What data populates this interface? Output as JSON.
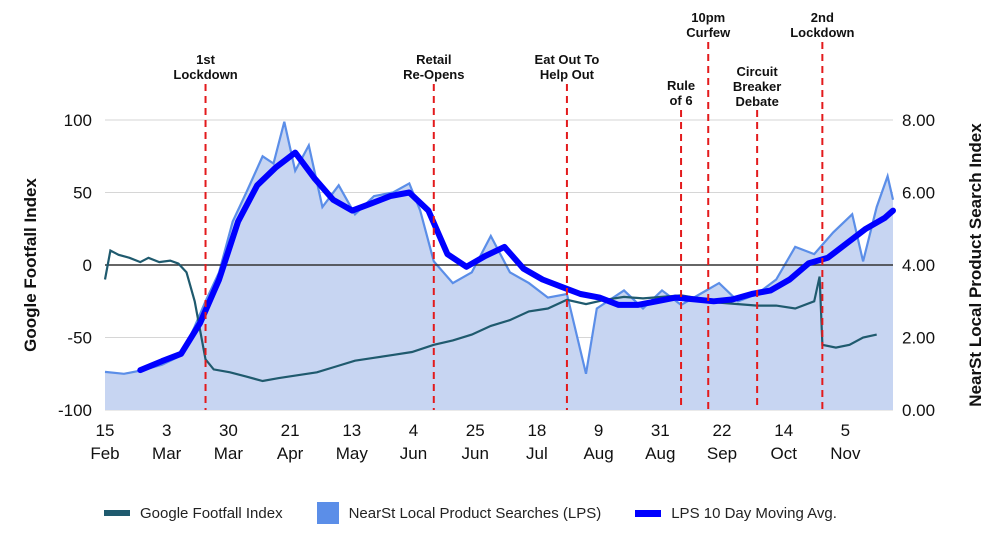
{
  "chart_data": {
    "type": "line",
    "y_left_label": "Google Footfall Index",
    "y_right_label": "NearSt Local Product Search Index",
    "y_left_ticks": [
      "100",
      "50",
      "0",
      "-50",
      "-100"
    ],
    "y_right_ticks": [
      "8.00",
      "6.00",
      "4.00",
      "2.00",
      "0.00"
    ],
    "ylim_left": [
      -100,
      100
    ],
    "ylim_right": [
      0,
      8
    ],
    "x_ticks": [
      {
        "day": "15",
        "month": "Feb"
      },
      {
        "day": "3",
        "month": "Mar"
      },
      {
        "day": "30",
        "month": "Mar"
      },
      {
        "day": "21",
        "month": "Apr"
      },
      {
        "day": "13",
        "month": "May"
      },
      {
        "day": "4",
        "month": "Jun"
      },
      {
        "day": "25",
        "month": "Jun"
      },
      {
        "day": "18",
        "month": "Jul"
      },
      {
        "day": "9",
        "month": "Aug"
      },
      {
        "day": "31",
        "month": "Aug"
      },
      {
        "day": "22",
        "month": "Sep"
      },
      {
        "day": "14",
        "month": "Oct"
      },
      {
        "day": "5",
        "month": "Nov"
      }
    ],
    "events": [
      {
        "lines": [
          "1st",
          "Lockdown"
        ],
        "date": "2020-03-23"
      },
      {
        "lines": [
          "Retail",
          "Re-Opens"
        ],
        "date": "2020-06-15"
      },
      {
        "lines": [
          "Eat Out To",
          "Help Out"
        ],
        "date": "2020-08-03"
      },
      {
        "lines": [
          "Rule",
          "of 6"
        ],
        "date": "2020-09-14"
      },
      {
        "lines": [
          "10pm",
          "Curfew"
        ],
        "date": "2020-09-24"
      },
      {
        "lines": [
          "Circuit",
          "Breaker",
          "Debate"
        ],
        "date": "2020-10-12"
      },
      {
        "lines": [
          "2nd",
          "Lockdown"
        ],
        "date": "2020-11-05"
      }
    ],
    "series": [
      {
        "name": "Google Footfall Index",
        "axis": "left",
        "color": "#1f5a6e",
        "points": [
          [
            "2020-02-15",
            -10
          ],
          [
            "2020-02-17",
            10
          ],
          [
            "2020-02-20",
            7
          ],
          [
            "2020-02-24",
            5
          ],
          [
            "2020-02-28",
            2
          ],
          [
            "2020-03-02",
            5
          ],
          [
            "2020-03-06",
            2
          ],
          [
            "2020-03-10",
            3
          ],
          [
            "2020-03-13",
            1
          ],
          [
            "2020-03-16",
            -5
          ],
          [
            "2020-03-19",
            -25
          ],
          [
            "2020-03-23",
            -65
          ],
          [
            "2020-03-26",
            -72
          ],
          [
            "2020-04-01",
            -74
          ],
          [
            "2020-04-07",
            -77
          ],
          [
            "2020-04-13",
            -80
          ],
          [
            "2020-04-19",
            -78
          ],
          [
            "2020-04-26",
            -76
          ],
          [
            "2020-05-03",
            -74
          ],
          [
            "2020-05-10",
            -70
          ],
          [
            "2020-05-17",
            -66
          ],
          [
            "2020-05-24",
            -64
          ],
          [
            "2020-05-31",
            -62
          ],
          [
            "2020-06-07",
            -60
          ],
          [
            "2020-06-15",
            -55
          ],
          [
            "2020-06-22",
            -52
          ],
          [
            "2020-06-29",
            -48
          ],
          [
            "2020-07-06",
            -42
          ],
          [
            "2020-07-13",
            -38
          ],
          [
            "2020-07-20",
            -32
          ],
          [
            "2020-07-27",
            -30
          ],
          [
            "2020-08-03",
            -24
          ],
          [
            "2020-08-10",
            -27
          ],
          [
            "2020-08-17",
            -24
          ],
          [
            "2020-08-24",
            -22
          ],
          [
            "2020-08-31",
            -23
          ],
          [
            "2020-09-07",
            -22
          ],
          [
            "2020-09-14",
            -21
          ],
          [
            "2020-09-21",
            -23
          ],
          [
            "2020-09-28",
            -26
          ],
          [
            "2020-10-05",
            -27
          ],
          [
            "2020-10-12",
            -28
          ],
          [
            "2020-10-19",
            -28
          ],
          [
            "2020-10-26",
            -30
          ],
          [
            "2020-11-02",
            -25
          ],
          [
            "2020-11-04",
            -8
          ],
          [
            "2020-11-05",
            -55
          ],
          [
            "2020-11-10",
            -57
          ],
          [
            "2020-11-15",
            -55
          ],
          [
            "2020-11-20",
            -50
          ],
          [
            "2020-11-25",
            -48
          ]
        ]
      },
      {
        "name": "NearSt Local Product Searches (LPS)",
        "axis": "right",
        "color": "#5b8ee8",
        "points": [
          [
            "2020-02-15",
            1.05
          ],
          [
            "2020-02-22",
            1.0
          ],
          [
            "2020-02-29",
            1.1
          ],
          [
            "2020-03-07",
            1.25
          ],
          [
            "2020-03-14",
            1.5
          ],
          [
            "2020-03-19",
            2.3
          ],
          [
            "2020-03-23",
            3.0
          ],
          [
            "2020-03-28",
            3.8
          ],
          [
            "2020-04-02",
            5.2
          ],
          [
            "2020-04-07",
            6.0
          ],
          [
            "2020-04-13",
            7.0
          ],
          [
            "2020-04-17",
            6.8
          ],
          [
            "2020-04-21",
            7.95
          ],
          [
            "2020-04-25",
            6.6
          ],
          [
            "2020-04-30",
            7.3
          ],
          [
            "2020-05-05",
            5.6
          ],
          [
            "2020-05-11",
            6.2
          ],
          [
            "2020-05-17",
            5.4
          ],
          [
            "2020-05-24",
            5.9
          ],
          [
            "2020-05-31",
            6.0
          ],
          [
            "2020-06-06",
            6.25
          ],
          [
            "2020-06-10",
            5.5
          ],
          [
            "2020-06-15",
            4.1
          ],
          [
            "2020-06-22",
            3.5
          ],
          [
            "2020-06-29",
            3.8
          ],
          [
            "2020-07-06",
            4.8
          ],
          [
            "2020-07-13",
            3.8
          ],
          [
            "2020-07-20",
            3.5
          ],
          [
            "2020-07-27",
            3.1
          ],
          [
            "2020-08-03",
            3.2
          ],
          [
            "2020-08-10",
            1.0
          ],
          [
            "2020-08-14",
            2.8
          ],
          [
            "2020-08-24",
            3.3
          ],
          [
            "2020-08-31",
            2.8
          ],
          [
            "2020-09-07",
            3.3
          ],
          [
            "2020-09-14",
            2.9
          ],
          [
            "2020-09-21",
            3.2
          ],
          [
            "2020-09-28",
            3.5
          ],
          [
            "2020-10-05",
            3.0
          ],
          [
            "2020-10-12",
            3.2
          ],
          [
            "2020-10-19",
            3.6
          ],
          [
            "2020-10-26",
            4.5
          ],
          [
            "2020-11-02",
            4.3
          ],
          [
            "2020-11-09",
            4.9
          ],
          [
            "2020-11-16",
            5.4
          ],
          [
            "2020-11-20",
            4.1
          ],
          [
            "2020-11-25",
            5.6
          ],
          [
            "2020-11-29",
            6.45
          ],
          [
            "2020-12-01",
            5.8
          ]
        ]
      },
      {
        "name": "LPS 10 Day Moving Avg.",
        "axis": "right",
        "color": "#0000ff",
        "points": [
          [
            "2020-02-28",
            1.1
          ],
          [
            "2020-03-07",
            1.35
          ],
          [
            "2020-03-14",
            1.55
          ],
          [
            "2020-03-21",
            2.4
          ],
          [
            "2020-03-28",
            3.6
          ],
          [
            "2020-04-04",
            5.2
          ],
          [
            "2020-04-11",
            6.2
          ],
          [
            "2020-04-18",
            6.7
          ],
          [
            "2020-04-25",
            7.1
          ],
          [
            "2020-05-02",
            6.4
          ],
          [
            "2020-05-09",
            5.8
          ],
          [
            "2020-05-16",
            5.5
          ],
          [
            "2020-05-23",
            5.7
          ],
          [
            "2020-05-30",
            5.9
          ],
          [
            "2020-06-06",
            6.0
          ],
          [
            "2020-06-13",
            5.5
          ],
          [
            "2020-06-20",
            4.3
          ],
          [
            "2020-06-27",
            3.95
          ],
          [
            "2020-07-04",
            4.25
          ],
          [
            "2020-07-11",
            4.5
          ],
          [
            "2020-07-18",
            3.9
          ],
          [
            "2020-07-25",
            3.6
          ],
          [
            "2020-08-01",
            3.4
          ],
          [
            "2020-08-08",
            3.2
          ],
          [
            "2020-08-15",
            3.1
          ],
          [
            "2020-08-22",
            2.9
          ],
          [
            "2020-08-29",
            2.9
          ],
          [
            "2020-09-05",
            3.0
          ],
          [
            "2020-09-12",
            3.1
          ],
          [
            "2020-09-19",
            3.05
          ],
          [
            "2020-09-26",
            3.0
          ],
          [
            "2020-10-03",
            3.05
          ],
          [
            "2020-10-10",
            3.2
          ],
          [
            "2020-10-17",
            3.3
          ],
          [
            "2020-10-24",
            3.6
          ],
          [
            "2020-10-31",
            4.05
          ],
          [
            "2020-11-07",
            4.2
          ],
          [
            "2020-11-14",
            4.6
          ],
          [
            "2020-11-21",
            5.0
          ],
          [
            "2020-11-28",
            5.3
          ],
          [
            "2020-12-01",
            5.5
          ]
        ]
      }
    ]
  },
  "legend": [
    {
      "label": "Google Footfall Index"
    },
    {
      "label": "NearSt Local Product Searches (LPS)"
    },
    {
      "label": "LPS 10 Day Moving Avg."
    }
  ]
}
